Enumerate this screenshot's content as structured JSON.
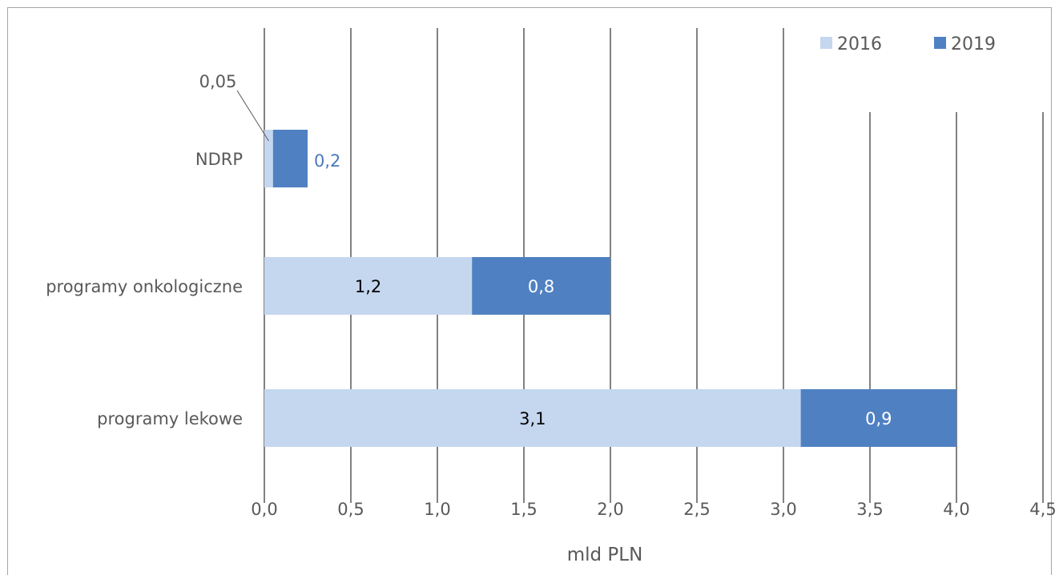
{
  "colors": {
    "series_2016": "#c5d7ef",
    "series_2019": "#4f81c2",
    "gridline": "#595959",
    "text": "#595959",
    "label_dark": "#000000",
    "label_light": "#ffffff",
    "label_blue": "#4a78bf",
    "border": "#a6a6a6"
  },
  "chart_data": {
    "type": "bar",
    "orientation": "horizontal",
    "stacked": true,
    "categories": [
      "NDRP",
      "programy onkologiczne",
      "programy lekowe"
    ],
    "series": [
      {
        "name": "2016",
        "values": [
          0.05,
          1.2,
          3.1
        ],
        "labels": [
          "0,05",
          "1,2",
          "3,1"
        ]
      },
      {
        "name": "2019",
        "values": [
          0.2,
          0.8,
          0.9
        ],
        "labels": [
          "0,2",
          "0,8",
          "0,9"
        ]
      }
    ],
    "xlabel": "mld PLN",
    "ylabel": "",
    "xlim": [
      0,
      4.5
    ],
    "xticks": [
      "0,0",
      "0,5",
      "1,0",
      "1,5",
      "2,0",
      "2,5",
      "3,0",
      "3,5",
      "4,0",
      "4,5"
    ],
    "grid": "vertical",
    "legend": "top-right"
  }
}
